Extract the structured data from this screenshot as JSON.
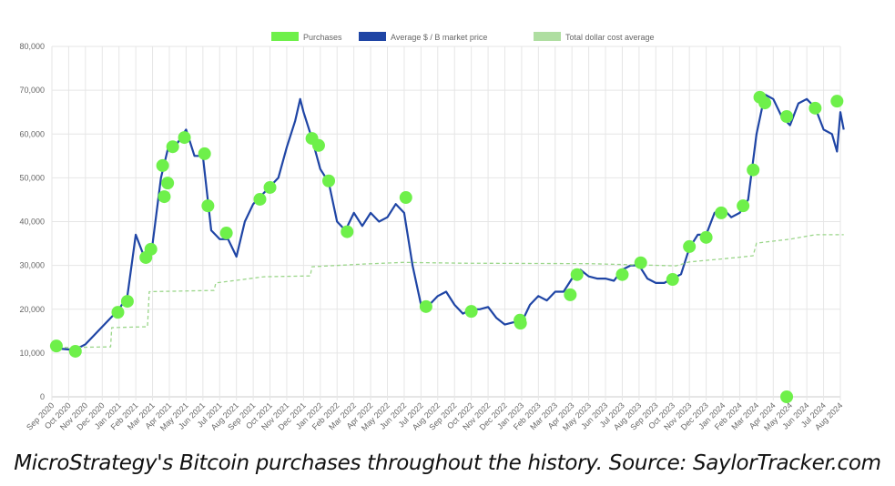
{
  "caption": "MicroStrategy's Bitcoin purchases throughout the history. Source: SaylorTracker.com",
  "chart_data": {
    "type": "line",
    "title": "",
    "xlabel": "",
    "ylabel": "",
    "ylim": [
      0,
      80000
    ],
    "yticks": [
      0,
      10000,
      20000,
      30000,
      40000,
      50000,
      60000,
      70000,
      80000
    ],
    "ytick_labels": [
      "0",
      "10,000",
      "20,000",
      "30,000",
      "40,000",
      "50,000",
      "60,000",
      "70,000",
      "80,000"
    ],
    "xlim": [
      "2020-09-01",
      "2024-08-01"
    ],
    "xtick_labels": [
      "Sep 2020",
      "Oct 2020",
      "Nov 2020",
      "Dec 2020",
      "Jan 2021",
      "Feb 2021",
      "Mar 2021",
      "Apr 2021",
      "May 2021",
      "Jun 2021",
      "Jul 2021",
      "Aug 2021",
      "Sep 2021",
      "Oct 2021",
      "Nov 2021",
      "Dec 2021",
      "Jan 2022",
      "Feb 2022",
      "Mar 2022",
      "Apr 2022",
      "May 2022",
      "Jun 2022",
      "Jul 2022",
      "Aug 2022",
      "Sep 2022",
      "Oct 2022",
      "Nov 2022",
      "Dec 2022",
      "Jan 2023",
      "Feb 2023",
      "Mar 2023",
      "Apr 2023",
      "May 2023",
      "Jun 2023",
      "Jul 2023",
      "Aug 2023",
      "Sep 2023",
      "Oct 2023",
      "Nov 2023",
      "Dec 2023",
      "Jan 2024",
      "Feb 2024",
      "Mar 2024",
      "Apr 2024",
      "May 2024",
      "Jun 2024",
      "Jul 2024",
      "Aug 2024"
    ],
    "grid": true,
    "legend_position": "top-center",
    "legend": [
      {
        "label": "Purchases",
        "color": "#6ef04a",
        "style": "marker"
      },
      {
        "label": "Average $ / B market price",
        "color": "#1f45a5",
        "style": "line"
      },
      {
        "label": "Total dollar cost average",
        "color": "#9bd68a",
        "style": "dashed"
      }
    ],
    "series": [
      {
        "name": "Average $ / B market price",
        "color": "#1f45a5",
        "points": [
          [
            "2020-09-01",
            11500
          ],
          [
            "2020-09-16",
            11000
          ],
          [
            "2020-10-01",
            10800
          ],
          [
            "2020-10-16",
            11000
          ],
          [
            "2020-11-01",
            12000
          ],
          [
            "2020-11-16",
            14000
          ],
          [
            "2020-12-01",
            16000
          ],
          [
            "2020-12-16",
            18000
          ],
          [
            "2021-01-01",
            20000
          ],
          [
            "2021-01-16",
            23000
          ],
          [
            "2021-02-01",
            37000
          ],
          [
            "2021-02-16",
            32000
          ],
          [
            "2021-03-01",
            35000
          ],
          [
            "2021-03-16",
            50000
          ],
          [
            "2021-04-01",
            58000
          ],
          [
            "2021-04-16",
            58000
          ],
          [
            "2021-05-01",
            61000
          ],
          [
            "2021-05-16",
            55000
          ],
          [
            "2021-06-01",
            55000
          ],
          [
            "2021-06-16",
            38000
          ],
          [
            "2021-07-01",
            36000
          ],
          [
            "2021-07-16",
            36000
          ],
          [
            "2021-08-01",
            32000
          ],
          [
            "2021-08-16",
            40000
          ],
          [
            "2021-09-01",
            44000
          ],
          [
            "2021-09-16",
            46000
          ],
          [
            "2021-10-01",
            48000
          ],
          [
            "2021-10-16",
            50000
          ],
          [
            "2021-11-01",
            57000
          ],
          [
            "2021-11-16",
            63000
          ],
          [
            "2021-11-25",
            68000
          ],
          [
            "2021-12-01",
            65000
          ],
          [
            "2021-12-16",
            59000
          ],
          [
            "2022-01-01",
            52000
          ],
          [
            "2022-01-16",
            49000
          ],
          [
            "2022-02-01",
            40000
          ],
          [
            "2022-02-16",
            38000
          ],
          [
            "2022-03-01",
            42000
          ],
          [
            "2022-03-16",
            39000
          ],
          [
            "2022-04-01",
            42000
          ],
          [
            "2022-04-16",
            40000
          ],
          [
            "2022-05-01",
            41000
          ],
          [
            "2022-05-16",
            44000
          ],
          [
            "2022-06-01",
            42000
          ],
          [
            "2022-06-16",
            30000
          ],
          [
            "2022-07-01",
            21000
          ],
          [
            "2022-07-16",
            21000
          ],
          [
            "2022-08-01",
            23000
          ],
          [
            "2022-08-16",
            24000
          ],
          [
            "2022-09-01",
            21000
          ],
          [
            "2022-09-16",
            19000
          ],
          [
            "2022-10-01",
            20000
          ],
          [
            "2022-10-16",
            20000
          ],
          [
            "2022-11-01",
            20500
          ],
          [
            "2022-11-16",
            18000
          ],
          [
            "2022-12-01",
            16500
          ],
          [
            "2022-12-16",
            17000
          ],
          [
            "2023-01-01",
            17000
          ],
          [
            "2023-01-16",
            21000
          ],
          [
            "2023-02-01",
            23000
          ],
          [
            "2023-02-16",
            22000
          ],
          [
            "2023-03-01",
            24000
          ],
          [
            "2023-03-16",
            24000
          ],
          [
            "2023-04-01",
            27000
          ],
          [
            "2023-04-16",
            29000
          ],
          [
            "2023-05-01",
            27500
          ],
          [
            "2023-05-16",
            27000
          ],
          [
            "2023-06-01",
            27000
          ],
          [
            "2023-06-16",
            26500
          ],
          [
            "2023-07-01",
            29000
          ],
          [
            "2023-07-16",
            30000
          ],
          [
            "2023-08-01",
            30000
          ],
          [
            "2023-08-16",
            27000
          ],
          [
            "2023-09-01",
            26000
          ],
          [
            "2023-09-16",
            26000
          ],
          [
            "2023-10-01",
            27000
          ],
          [
            "2023-10-16",
            28000
          ],
          [
            "2023-11-01",
            34000
          ],
          [
            "2023-11-16",
            37000
          ],
          [
            "2023-12-01",
            37000
          ],
          [
            "2023-12-16",
            42000
          ],
          [
            "2024-01-01",
            43000
          ],
          [
            "2024-01-16",
            41000
          ],
          [
            "2024-02-01",
            42000
          ],
          [
            "2024-02-16",
            45000
          ],
          [
            "2024-03-01",
            60000
          ],
          [
            "2024-03-16",
            69000
          ],
          [
            "2024-04-01",
            68000
          ],
          [
            "2024-04-16",
            64000
          ],
          [
            "2024-05-01",
            62000
          ],
          [
            "2024-05-16",
            67000
          ],
          [
            "2024-06-01",
            68000
          ],
          [
            "2024-06-16",
            66000
          ],
          [
            "2024-07-01",
            61000
          ],
          [
            "2024-07-16",
            60000
          ],
          [
            "2024-07-25",
            56000
          ],
          [
            "2024-08-01",
            65000
          ],
          [
            "2024-08-07",
            61000
          ]
        ]
      },
      {
        "name": "Total dollar cost average",
        "color": "#9bd68a",
        "points": [
          [
            "2020-09-01",
            11200
          ],
          [
            "2020-12-16",
            11400
          ],
          [
            "2020-12-18",
            15800
          ],
          [
            "2021-02-22",
            16000
          ],
          [
            "2021-02-25",
            24000
          ],
          [
            "2021-06-21",
            24300
          ],
          [
            "2021-06-24",
            26000
          ],
          [
            "2021-09-20",
            27400
          ],
          [
            "2021-12-13",
            27600
          ],
          [
            "2021-12-16",
            29700
          ],
          [
            "2022-03-16",
            30300
          ],
          [
            "2022-05-30",
            30700
          ],
          [
            "2022-09-16",
            30500
          ],
          [
            "2023-05-01",
            30400
          ],
          [
            "2023-10-07",
            29900
          ],
          [
            "2023-11-01",
            30800
          ],
          [
            "2024-01-25",
            31800
          ],
          [
            "2024-02-25",
            32200
          ],
          [
            "2024-03-01",
            35100
          ],
          [
            "2024-05-01",
            36000
          ],
          [
            "2024-06-16",
            37000
          ],
          [
            "2024-08-07",
            37000
          ]
        ]
      }
    ],
    "purchases": {
      "name": "Purchases",
      "color": "#6ef04a",
      "points": [
        [
          "2020-09-09",
          11600
        ],
        [
          "2020-10-13",
          10400
        ],
        [
          "2020-12-29",
          19300
        ],
        [
          "2021-01-16",
          21800
        ],
        [
          "2021-02-19",
          31800
        ],
        [
          "2021-02-28",
          33700
        ],
        [
          "2021-03-22",
          45700
        ],
        [
          "2021-03-19",
          52800
        ],
        [
          "2021-03-28",
          48800
        ],
        [
          "2021-04-07",
          57100
        ],
        [
          "2021-04-28",
          59200
        ],
        [
          "2021-06-04",
          55500
        ],
        [
          "2021-06-10",
          43600
        ],
        [
          "2021-07-13",
          37400
        ],
        [
          "2021-09-13",
          45100
        ],
        [
          "2021-10-01",
          47800
        ],
        [
          "2021-12-16",
          59000
        ],
        [
          "2021-12-28",
          57400
        ],
        [
          "2022-01-16",
          49300
        ],
        [
          "2022-02-19",
          37700
        ],
        [
          "2022-06-04",
          45500
        ],
        [
          "2022-07-10",
          20600
        ],
        [
          "2022-10-01",
          19500
        ],
        [
          "2022-12-28",
          17500
        ],
        [
          "2022-12-29",
          16800
        ],
        [
          "2023-03-28",
          23300
        ],
        [
          "2023-04-10",
          27900
        ],
        [
          "2023-07-01",
          27900
        ],
        [
          "2023-08-04",
          30600
        ],
        [
          "2023-10-01",
          26800
        ],
        [
          "2023-11-01",
          34300
        ],
        [
          "2023-12-01",
          36400
        ],
        [
          "2023-12-28",
          42000
        ],
        [
          "2024-02-07",
          43600
        ],
        [
          "2024-02-25",
          51800
        ],
        [
          "2024-03-07",
          68400
        ],
        [
          "2024-03-16",
          67100
        ],
        [
          "2024-04-25",
          0
        ],
        [
          "2024-04-25",
          64000
        ],
        [
          "2024-06-16",
          65900
        ],
        [
          "2024-07-25",
          67500
        ]
      ]
    }
  }
}
